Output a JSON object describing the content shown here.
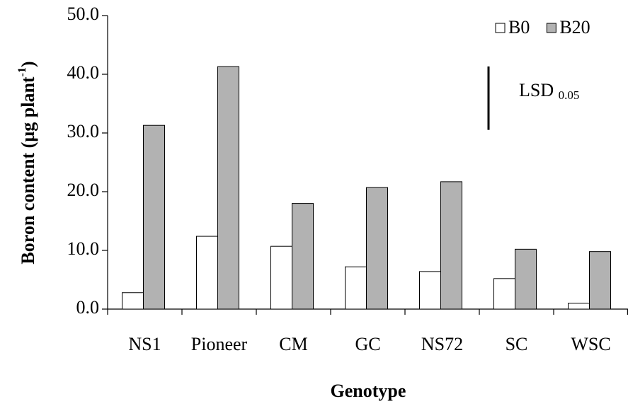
{
  "chart_data": {
    "type": "bar",
    "x_label": "Genotype",
    "y_label": "Boron content (µg plant",
    "y_label_sup": "-1",
    "y_label_end": ")",
    "categories": [
      "NS1",
      "Pioneer",
      "CM",
      "GC",
      "NS72",
      "SC",
      "WSC"
    ],
    "series": [
      {
        "name": "B0",
        "color": "#ffffff",
        "values": [
          2.8,
          12.4,
          10.7,
          7.2,
          6.4,
          5.2,
          1.0
        ]
      },
      {
        "name": "B20",
        "color": "#b2b2b2",
        "values": [
          31.3,
          41.3,
          18.0,
          20.7,
          21.7,
          10.2,
          9.8
        ]
      }
    ],
    "ylim": [
      0,
      50
    ],
    "yticks": [
      {
        "value": 0,
        "label": "0.0"
      },
      {
        "value": 10,
        "label": "10.0"
      },
      {
        "value": 20,
        "label": "20.0"
      },
      {
        "value": 30,
        "label": "30.0"
      },
      {
        "value": 40,
        "label": "40.0"
      },
      {
        "value": 50,
        "label": "50.0"
      }
    ],
    "lsd": {
      "label": "LSD",
      "subscript": "0.05",
      "value": 10.8
    },
    "legend": "top-right"
  }
}
